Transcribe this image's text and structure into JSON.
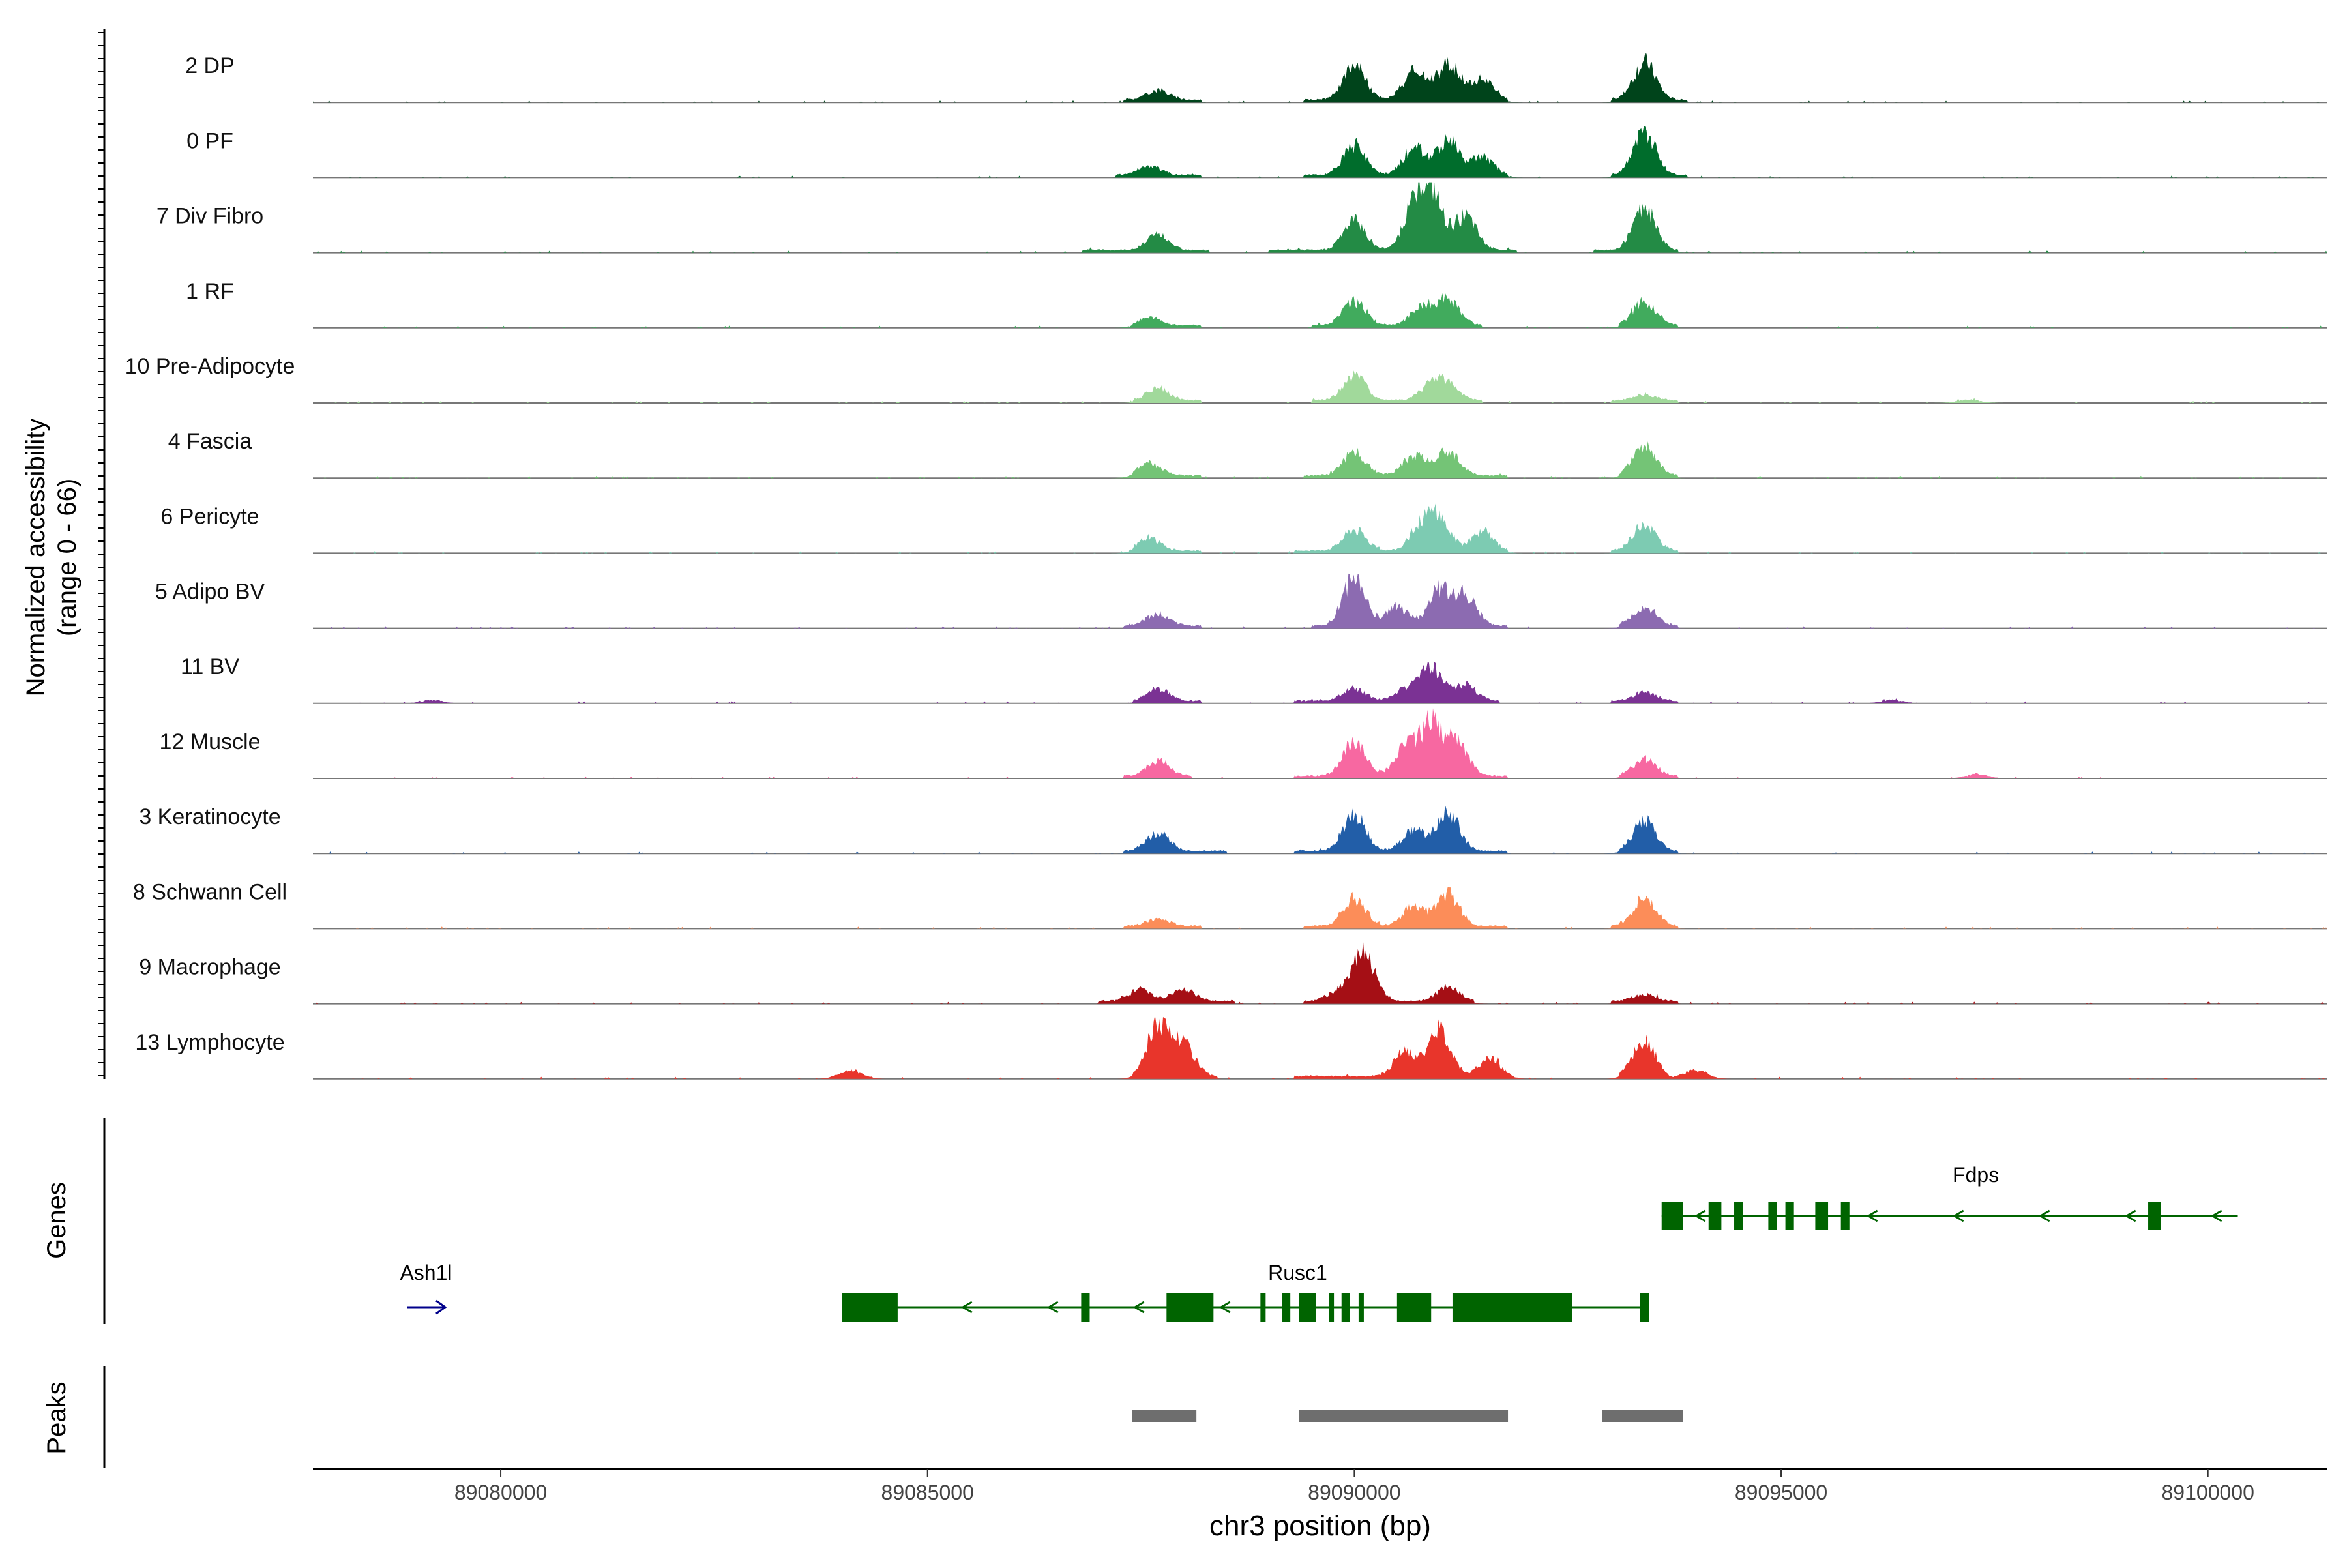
{
  "chart_data": {
    "type": "area",
    "chromosome": "chr3",
    "xlim": [
      89077800,
      89101400
    ],
    "y_axis_title": [
      "Normalized accessibility",
      "(range 0 - 66)"
    ],
    "y_range": [
      0,
      66
    ],
    "x_axis_title": "chr3 position (bp)",
    "x_ticks": [
      {
        "value": 89080000,
        "label": "89080000"
      },
      {
        "value": 89085000,
        "label": "89085000"
      },
      {
        "value": 89090000,
        "label": "89090000"
      },
      {
        "value": 89095000,
        "label": "89095000"
      },
      {
        "value": 89100000,
        "label": "89100000"
      }
    ],
    "series": [
      {
        "name": "2 DP",
        "color": "#00441b",
        "peaks": [
          [
            89087700,
            9
          ],
          [
            89090000,
            31
          ],
          [
            89090700,
            25
          ],
          [
            89091100,
            33
          ],
          [
            89091500,
            18
          ],
          [
            89093400,
            34
          ]
        ],
        "spans": [
          [
            89087300,
            89088200
          ],
          [
            89089400,
            89091800
          ],
          [
            89093000,
            89093900
          ]
        ]
      },
      {
        "name": "0 PF",
        "color": "#006d2c",
        "peaks": [
          [
            89087600,
            8
          ],
          [
            89090000,
            27
          ],
          [
            89090700,
            24
          ],
          [
            89091100,
            31
          ],
          [
            89091500,
            16
          ],
          [
            89093400,
            39
          ]
        ],
        "spans": [
          [
            89087200,
            89088200
          ],
          [
            89089400,
            89091800
          ],
          [
            89093000,
            89093900
          ]
        ]
      },
      {
        "name": "7 Div Fibro",
        "color": "#238b45",
        "peaks": [
          [
            89087700,
            14
          ],
          [
            89090000,
            27
          ],
          [
            89090700,
            36
          ],
          [
            89090900,
            48
          ],
          [
            89091300,
            30
          ],
          [
            89093400,
            38
          ]
        ],
        "spans": [
          [
            89086800,
            89088300
          ],
          [
            89089000,
            89091900
          ],
          [
            89092800,
            89093800
          ]
        ]
      },
      {
        "name": "1 RF",
        "color": "#41ab5d",
        "peaks": [
          [
            89087600,
            7
          ],
          [
            89090000,
            21
          ],
          [
            89090800,
            17
          ],
          [
            89091100,
            22
          ],
          [
            89093400,
            22
          ]
        ],
        "spans": [
          [
            89087400,
            89088200
          ],
          [
            89089500,
            89091500
          ],
          [
            89093100,
            89093800
          ]
        ]
      },
      {
        "name": "10 Pre-Adipocyte",
        "color": "#a1d99b",
        "peaks": [
          [
            89087700,
            11
          ],
          [
            89090000,
            22
          ],
          [
            89090900,
            14
          ],
          [
            89091100,
            12
          ],
          [
            89093400,
            5
          ],
          [
            89097200,
            3
          ]
        ],
        "spans": [
          [
            89087400,
            89088200
          ],
          [
            89089500,
            89091500
          ],
          [
            89093000,
            89093800
          ]
        ]
      },
      {
        "name": "4 Fascia",
        "color": "#74c476",
        "peaks": [
          [
            89087600,
            11
          ],
          [
            89090000,
            21
          ],
          [
            89090700,
            18
          ],
          [
            89091100,
            22
          ],
          [
            89093400,
            26
          ]
        ],
        "spans": [
          [
            89087400,
            89088200
          ],
          [
            89089400,
            89091800
          ],
          [
            89093100,
            89093800
          ]
        ]
      },
      {
        "name": "6 Pericyte",
        "color": "#7dcbb2",
        "peaks": [
          [
            89087600,
            11
          ],
          [
            89090000,
            19
          ],
          [
            89090800,
            22
          ],
          [
            89091000,
            25
          ],
          [
            89091500,
            17
          ],
          [
            89093400,
            24
          ]
        ],
        "spans": [
          [
            89087400,
            89088200
          ],
          [
            89089300,
            89091800
          ],
          [
            89093000,
            89093800
          ]
        ]
      },
      {
        "name": "5 Adipo BV",
        "color": "#8c6bb1",
        "peaks": [
          [
            89087700,
            11
          ],
          [
            89090000,
            43
          ],
          [
            89090500,
            17
          ],
          [
            89091000,
            32
          ],
          [
            89091300,
            26
          ],
          [
            89093400,
            18
          ]
        ],
        "spans": [
          [
            89087300,
            89088200
          ],
          [
            89089500,
            89091800
          ],
          [
            89093100,
            89093800
          ]
        ]
      },
      {
        "name": "11 BV",
        "color": "#7b3294",
        "peaks": [
          [
            89079200,
            3
          ],
          [
            89087700,
            11
          ],
          [
            89090000,
            11
          ],
          [
            89090600,
            10
          ],
          [
            89090900,
            29
          ],
          [
            89091300,
            14
          ],
          [
            89093400,
            8
          ],
          [
            89096300,
            3
          ]
        ],
        "spans": [
          [
            89087400,
            89088200
          ],
          [
            89089300,
            89091700
          ],
          [
            89093000,
            89093800
          ]
        ]
      },
      {
        "name": "12 Muscle",
        "color": "#f768a1",
        "peaks": [
          [
            89087700,
            14
          ],
          [
            89090000,
            32
          ],
          [
            89090600,
            25
          ],
          [
            89090900,
            45
          ],
          [
            89091200,
            30
          ],
          [
            89093400,
            15
          ],
          [
            89097300,
            4
          ]
        ],
        "spans": [
          [
            89087300,
            89088100
          ],
          [
            89089300,
            89091800
          ],
          [
            89093100,
            89093800
          ]
        ]
      },
      {
        "name": "3 Keratinocyte",
        "color": "#225ea8",
        "peaks": [
          [
            89087700,
            16
          ],
          [
            89090000,
            33
          ],
          [
            89090700,
            19
          ],
          [
            89091100,
            34
          ],
          [
            89093400,
            27
          ]
        ],
        "spans": [
          [
            89087300,
            89088500
          ],
          [
            89089300,
            89091800
          ],
          [
            89093100,
            89093800
          ]
        ]
      },
      {
        "name": "8 Schwann Cell",
        "color": "#fc8d59",
        "peaks": [
          [
            89087700,
            7
          ],
          [
            89090000,
            25
          ],
          [
            89090700,
            19
          ],
          [
            89091100,
            28
          ],
          [
            89093400,
            26
          ]
        ],
        "spans": [
          [
            89087300,
            89088200
          ],
          [
            89089400,
            89091800
          ],
          [
            89093000,
            89093800
          ]
        ]
      },
      {
        "name": "9 Macrophage",
        "color": "#a50f15",
        "peaks": [
          [
            89087500,
            11
          ],
          [
            89088000,
            11
          ],
          [
            89089800,
            8
          ],
          [
            89090100,
            46
          ],
          [
            89091100,
            13
          ],
          [
            89093400,
            6
          ]
        ],
        "spans": [
          [
            89087000,
            89088600
          ],
          [
            89089400,
            89091400
          ],
          [
            89093000,
            89093800
          ]
        ]
      },
      {
        "name": "13 Lymphocyte",
        "color": "#e8352b",
        "peaks": [
          [
            89084100,
            8
          ],
          [
            89087700,
            45
          ],
          [
            89088000,
            28
          ],
          [
            89090600,
            22
          ],
          [
            89091000,
            41
          ],
          [
            89091600,
            17
          ],
          [
            89093400,
            34
          ],
          [
            89094000,
            8
          ]
        ],
        "spans": [
          [
            89087400,
            89088400
          ],
          [
            89089300,
            89091700
          ],
          [
            89093100,
            89093500
          ]
        ]
      }
    ],
    "genes_track_label": "Genes",
    "genes": [
      {
        "name": "Fdps",
        "strand": "-",
        "start": 89093600,
        "end": 89100350,
        "row": 1,
        "exons": [
          [
            89093600,
            89093850
          ],
          [
            89094150,
            89094300
          ],
          [
            89094450,
            89094550
          ],
          [
            89094850,
            89094950
          ],
          [
            89095050,
            89095150
          ],
          [
            89095400,
            89095550
          ],
          [
            89095700,
            89095800
          ],
          [
            89099300,
            89099450
          ]
        ]
      },
      {
        "name": "Rusc1",
        "strand": "-",
        "start": 89084000,
        "end": 89093450,
        "row": 2,
        "exons": [
          [
            89084000,
            89084650
          ],
          [
            89086800,
            89086900
          ],
          [
            89087800,
            89088350
          ],
          [
            89088900,
            89088950
          ],
          [
            89089150,
            89089250
          ],
          [
            89089350,
            89089550
          ],
          [
            89089700,
            89089750
          ],
          [
            89089850,
            89089950
          ],
          [
            89090050,
            89090100
          ],
          [
            89090500,
            89090900
          ],
          [
            89091150,
            89092550
          ],
          [
            89093350,
            89093450
          ]
        ]
      },
      {
        "name": "Ash1l",
        "strand": "+",
        "start": 89078900,
        "end": 89079350,
        "row": 2,
        "exons": []
      }
    ],
    "peaks_track_label": "Peaks",
    "peak_regions": [
      [
        89087400,
        89088150
      ],
      [
        89089350,
        89091800
      ],
      [
        89092900,
        89093850
      ]
    ]
  }
}
